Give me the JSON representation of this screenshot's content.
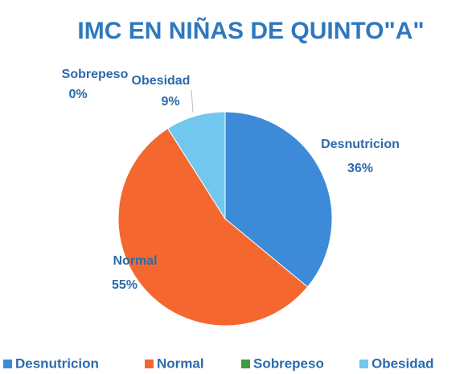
{
  "chart_data": {
    "type": "pie",
    "title": "IMC EN NIÑAS DE QUINTO\"A\"",
    "categories": [
      "Desnutricion",
      "Normal",
      "Sobrepeso",
      "Obesidad"
    ],
    "values": [
      36,
      55,
      0,
      9
    ],
    "value_labels": [
      "36%",
      "55%",
      "0%",
      "9%"
    ],
    "colors": [
      "#3d8bd8",
      "#f4682f",
      "#3f9b3f",
      "#72c7ee"
    ],
    "legend": "bottom"
  }
}
